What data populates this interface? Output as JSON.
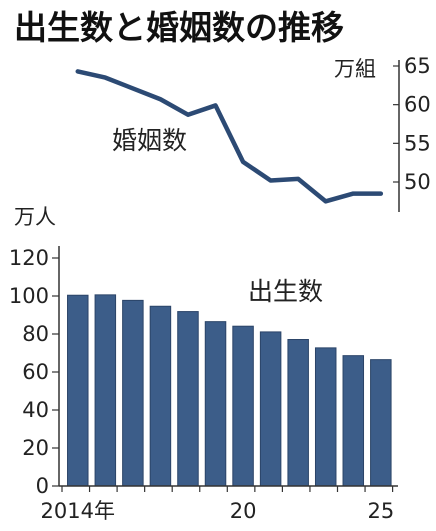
{
  "colors": {
    "line": "#2c4a74",
    "bar": "#3c5d89",
    "bar_edge": "#2b4468",
    "axis": "#333333"
  },
  "chart_data": [
    {
      "type": "line",
      "title": "出生数と婚姻数の推移",
      "series_label": "婚姻数",
      "unit": "万組",
      "x": [
        "2014",
        "2015",
        "2016",
        "2017",
        "2018",
        "2019",
        "2020",
        "2021",
        "2022",
        "2023",
        "2024",
        "2025"
      ],
      "values": [
        64.3,
        63.5,
        62.1,
        60.7,
        58.7,
        59.9,
        52.6,
        50.2,
        50.4,
        47.5,
        48.5,
        48.5
      ],
      "ylim": [
        47,
        65
      ],
      "y_ticks": [
        "65",
        "60",
        "55",
        "50"
      ],
      "axis_side": "right"
    },
    {
      "type": "bar",
      "series_label": "出生数",
      "unit": "万人",
      "categories": [
        "2014",
        "2015",
        "2016",
        "2017",
        "2018",
        "2019",
        "2020",
        "2021",
        "2022",
        "2023",
        "2024",
        "2025"
      ],
      "values": [
        100.4,
        100.6,
        97.7,
        94.6,
        91.8,
        86.5,
        84.1,
        81.1,
        77.1,
        72.7,
        68.6,
        66.5
      ],
      "ylim": [
        0,
        120
      ],
      "y_ticks": [
        "120",
        "100",
        "80",
        "60",
        "40",
        "20",
        "0"
      ],
      "x_tick_labels": [
        {
          "at": "2014",
          "label": "2014年"
        },
        {
          "at": "2020",
          "label": "20"
        },
        {
          "at": "2025",
          "label": "25"
        }
      ],
      "axis_side": "left"
    }
  ]
}
